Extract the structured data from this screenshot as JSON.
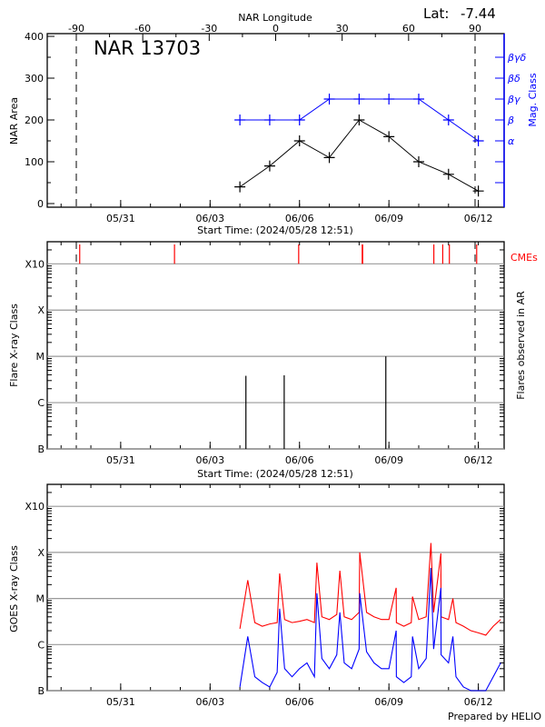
{
  "colors": {
    "area": "#000000",
    "mag_class": "#0000ff",
    "cme": "#ff0000",
    "goes_long": "#ff0000",
    "goes_short": "#0000ff",
    "grid": "#999999"
  },
  "time_axis": {
    "start": "2024-05-28T12:51:00Z",
    "end": "2024-06-12T20:46:00Z",
    "tick_labels": [
      "05/31",
      "06/03",
      "06/06",
      "06/09",
      "06/12"
    ],
    "tick_dates": [
      "2024-05-31",
      "2024-06-03",
      "2024-06-06",
      "2024-06-09",
      "2024-06-12"
    ],
    "xlabel": "Start Time: (2024/05/28 12:51)"
  },
  "footer": "Prepared by HELIO",
  "chart_data": [
    {
      "type": "line",
      "title": "NAR 13703",
      "top_axis": {
        "label": "NAR Longitude",
        "ticks": [
          -90,
          -60,
          -30,
          0,
          30,
          60,
          90
        ],
        "dashed_lines": [
          -90,
          90
        ]
      },
      "lat_label": "Lat:",
      "lat_value": "-7.44",
      "ylabel": "NAR Area",
      "ylim": [
        0,
        400
      ],
      "yticks": [
        0,
        100,
        200,
        300,
        400
      ],
      "y2label": "Mag. Class",
      "y2_classes": [
        {
          "label": "",
          "at": 50
        },
        {
          "label": "",
          "at": 100
        },
        {
          "label": "α",
          "at": 150
        },
        {
          "label": "β",
          "at": 200
        },
        {
          "label": "βγ",
          "at": 250
        },
        {
          "label": "βδ",
          "at": 300
        },
        {
          "label": "βγδ",
          "at": 350
        }
      ],
      "x": [
        "2024-06-04T00:00Z",
        "2024-06-05T00:00Z",
        "2024-06-06T00:00Z",
        "2024-06-07T00:00Z",
        "2024-06-08T00:00Z",
        "2024-06-09T00:00Z",
        "2024-06-10T00:00Z",
        "2024-06-11T00:00Z",
        "2024-06-12T00:00Z"
      ],
      "series": [
        {
          "name": "NAR Area",
          "values": [
            40,
            90,
            150,
            110,
            200,
            160,
            100,
            70,
            30
          ]
        },
        {
          "name": "Mag. Class",
          "values": [
            "β",
            "β",
            "β",
            "βγ",
            "βγ",
            "βγ",
            "βγ",
            "β",
            "α"
          ]
        }
      ]
    },
    {
      "type": "bar",
      "ylabel": "Flare X-ray Class",
      "y2label": "Flares observed in AR",
      "yscale": "log",
      "ylim": [
        1e-07,
        0.003
      ],
      "class_ticks": [
        {
          "label": "B",
          "flux": 1e-07
        },
        {
          "label": "C",
          "flux": 1e-06
        },
        {
          "label": "M",
          "flux": 1e-05
        },
        {
          "label": "X",
          "flux": 0.0001
        },
        {
          "label": "X10",
          "flux": 0.001
        }
      ],
      "cme_label": "CMEs",
      "cmes": [
        "2024-05-29T15:00Z",
        "2024-06-01T19:20Z",
        "2024-06-05T23:20Z",
        "2024-06-08T02:30Z",
        "2024-06-08T02:50Z",
        "2024-06-10T12:10Z",
        "2024-06-10T19:20Z",
        "2024-06-11T00:40Z",
        "2024-06-11T22:40Z"
      ],
      "flares": [
        {
          "time": "2024-06-04T04:50Z",
          "class": "C3.8",
          "flux": 3.8e-06
        },
        {
          "time": "2024-06-05T11:40Z",
          "class": "C3.9",
          "flux": 3.9e-06
        },
        {
          "time": "2024-06-08T21:30Z",
          "class": "M1.0",
          "flux": 1e-05
        }
      ],
      "dashed_lines_longitude": [
        -90,
        90
      ]
    },
    {
      "type": "line",
      "ylabel": "GOES X-ray Class",
      "yscale": "log",
      "ylim": [
        1e-07,
        0.003
      ],
      "class_ticks": [
        {
          "label": "B",
          "flux": 1e-07
        },
        {
          "label": "C",
          "flux": 1e-06
        },
        {
          "label": "M",
          "flux": 1e-05
        },
        {
          "label": "X",
          "flux": 0.0001
        },
        {
          "label": "X10",
          "flux": 0.001
        }
      ],
      "series": [
        {
          "color_key": "goes_long",
          "points": [
            [
              "2024-06-04T00:00Z",
              2.2e-06
            ],
            [
              "2024-06-04T06:20Z",
              2.5e-05
            ],
            [
              "2024-06-04T12:00Z",
              3e-06
            ],
            [
              "2024-06-04T18:00Z",
              2.5e-06
            ],
            [
              "2024-06-05T00:00Z",
              2.8e-06
            ],
            [
              "2024-06-05T06:00Z",
              3e-06
            ],
            [
              "2024-06-05T08:00Z",
              3.5e-05
            ],
            [
              "2024-06-05T12:00Z",
              3.5e-06
            ],
            [
              "2024-06-05T18:00Z",
              3e-06
            ],
            [
              "2024-06-06T00:00Z",
              3.2e-06
            ],
            [
              "2024-06-06T06:00Z",
              3.5e-06
            ],
            [
              "2024-06-06T12:00Z",
              3e-06
            ],
            [
              "2024-06-06T14:00Z",
              6e-05
            ],
            [
              "2024-06-06T18:00Z",
              4e-06
            ],
            [
              "2024-06-07T00:00Z",
              3.5e-06
            ],
            [
              "2024-06-07T06:00Z",
              4.5e-06
            ],
            [
              "2024-06-07T08:30Z",
              4e-05
            ],
            [
              "2024-06-07T12:00Z",
              4e-06
            ],
            [
              "2024-06-07T18:00Z",
              3.5e-06
            ],
            [
              "2024-06-08T00:00Z",
              5e-06
            ],
            [
              "2024-06-08T00:30Z",
              0.0001
            ],
            [
              "2024-06-08T06:00Z",
              5e-06
            ],
            [
              "2024-06-08T12:00Z",
              4e-06
            ],
            [
              "2024-06-08T18:00Z",
              3.5e-06
            ],
            [
              "2024-06-09T00:00Z",
              3.5e-06
            ],
            [
              "2024-06-09T05:50Z",
              1.7e-05
            ],
            [
              "2024-06-09T06:00Z",
              3e-06
            ],
            [
              "2024-06-09T12:00Z",
              2.5e-06
            ],
            [
              "2024-06-09T18:00Z",
              3e-06
            ],
            [
              "2024-06-09T19:00Z",
              1.1e-05
            ],
            [
              "2024-06-10T00:00Z",
              3.5e-06
            ],
            [
              "2024-06-10T06:00Z",
              4e-06
            ],
            [
              "2024-06-10T09:50Z",
              0.00016
            ],
            [
              "2024-06-10T12:00Z",
              5e-06
            ],
            [
              "2024-06-10T17:50Z",
              9.5e-05
            ],
            [
              "2024-06-10T18:00Z",
              4e-06
            ],
            [
              "2024-06-11T00:00Z",
              3.5e-06
            ],
            [
              "2024-06-11T03:30Z",
              1e-05
            ],
            [
              "2024-06-11T06:00Z",
              3e-06
            ],
            [
              "2024-06-11T12:00Z",
              2.5e-06
            ],
            [
              "2024-06-11T18:00Z",
              2e-06
            ],
            [
              "2024-06-12T00:00Z",
              1.8e-06
            ],
            [
              "2024-06-12T06:00Z",
              1.6e-06
            ],
            [
              "2024-06-12T12:00Z",
              2.5e-06
            ],
            [
              "2024-06-12T18:00Z",
              3.5e-06
            ]
          ]
        },
        {
          "color_key": "goes_short",
          "points": [
            [
              "2024-06-04T00:00Z",
              1.2e-07
            ],
            [
              "2024-06-04T06:20Z",
              1.5e-06
            ],
            [
              "2024-06-04T12:00Z",
              2e-07
            ],
            [
              "2024-06-04T18:00Z",
              1.5e-07
            ],
            [
              "2024-06-05T00:00Z",
              1.2e-07
            ],
            [
              "2024-06-05T06:00Z",
              2.5e-07
            ],
            [
              "2024-06-05T08:00Z",
              6e-06
            ],
            [
              "2024-06-05T12:00Z",
              3e-07
            ],
            [
              "2024-06-05T18:00Z",
              2e-07
            ],
            [
              "2024-06-06T00:00Z",
              3e-07
            ],
            [
              "2024-06-06T06:00Z",
              4e-07
            ],
            [
              "2024-06-06T12:00Z",
              2e-07
            ],
            [
              "2024-06-06T14:00Z",
              1.3e-05
            ],
            [
              "2024-06-06T18:00Z",
              5e-07
            ],
            [
              "2024-06-07T00:00Z",
              3e-07
            ],
            [
              "2024-06-07T06:00Z",
              6e-07
            ],
            [
              "2024-06-07T08:30Z",
              5e-06
            ],
            [
              "2024-06-07T12:00Z",
              4e-07
            ],
            [
              "2024-06-07T18:00Z",
              3e-07
            ],
            [
              "2024-06-08T00:00Z",
              8e-07
            ],
            [
              "2024-06-08T00:30Z",
              1.3e-05
            ],
            [
              "2024-06-08T06:00Z",
              7e-07
            ],
            [
              "2024-06-08T12:00Z",
              4e-07
            ],
            [
              "2024-06-08T18:00Z",
              3e-07
            ],
            [
              "2024-06-09T00:00Z",
              3e-07
            ],
            [
              "2024-06-09T05:50Z",
              2e-06
            ],
            [
              "2024-06-09T06:00Z",
              2e-07
            ],
            [
              "2024-06-09T12:00Z",
              1.5e-07
            ],
            [
              "2024-06-09T18:00Z",
              2e-07
            ],
            [
              "2024-06-09T19:00Z",
              1.5e-06
            ],
            [
              "2024-06-10T00:00Z",
              3e-07
            ],
            [
              "2024-06-10T06:00Z",
              5e-07
            ],
            [
              "2024-06-10T09:50Z",
              4.6e-05
            ],
            [
              "2024-06-10T12:00Z",
              8e-07
            ],
            [
              "2024-06-10T17:50Z",
              1.7e-05
            ],
            [
              "2024-06-10T18:00Z",
              6e-07
            ],
            [
              "2024-06-11T00:00Z",
              4e-07
            ],
            [
              "2024-06-11T03:30Z",
              1.5e-06
            ],
            [
              "2024-06-11T06:00Z",
              2e-07
            ],
            [
              "2024-06-11T12:00Z",
              1.2e-07
            ],
            [
              "2024-06-11T18:00Z",
              1e-07
            ],
            [
              "2024-06-12T00:00Z",
              1e-07
            ],
            [
              "2024-06-12T06:00Z",
              1e-07
            ],
            [
              "2024-06-12T12:00Z",
              2e-07
            ],
            [
              "2024-06-12T18:00Z",
              4e-07
            ]
          ]
        }
      ]
    }
  ]
}
